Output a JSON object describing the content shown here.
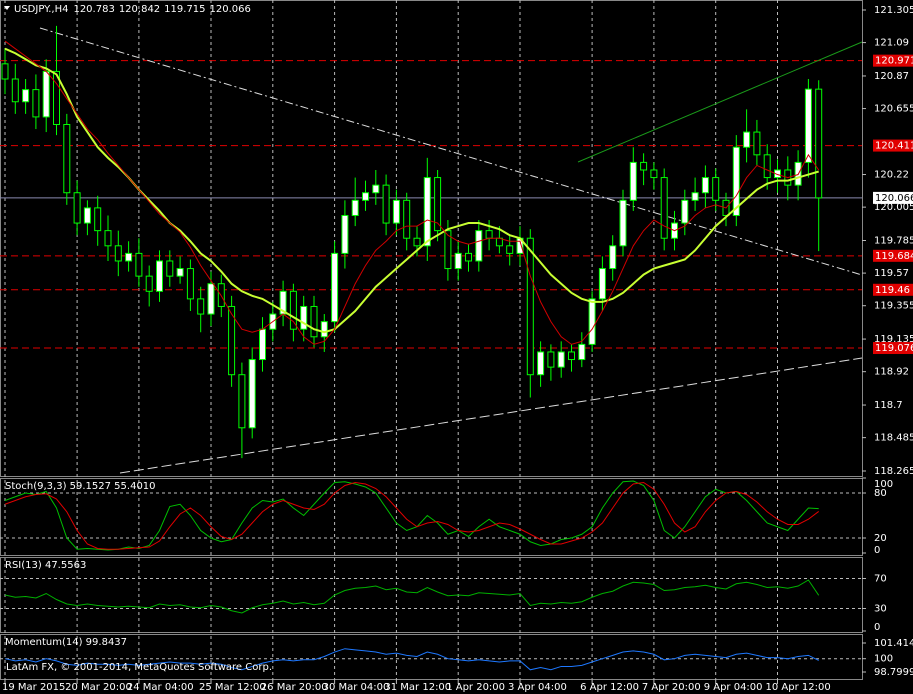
{
  "chart_data": {
    "type": "candlestick",
    "title": "USDJPY.,H4",
    "categories": [
      "19 Mar 2015",
      null,
      null,
      null,
      null,
      null,
      null,
      "20 Mar 20:00",
      null,
      null,
      null,
      null,
      null,
      "24 Mar 04:00",
      null,
      null,
      null,
      null,
      null,
      null,
      "25 Mar 12:00",
      null,
      null,
      null,
      null,
      null,
      "26 Mar 20:00",
      null,
      null,
      null,
      null,
      null,
      "30 Mar 04:00",
      null,
      null,
      null,
      null,
      null,
      "31 Mar 12:00",
      null,
      null,
      null,
      null,
      null,
      "1 Apr 20:00",
      null,
      null,
      null,
      null,
      null,
      "3 Apr 04:00",
      null,
      null,
      null,
      null,
      null,
      null,
      "6 Apr 12:00",
      null,
      null,
      null,
      null,
      null,
      "7 Apr 20:00",
      null,
      null,
      null,
      null,
      null,
      "9 Apr 04:00",
      null,
      null,
      null,
      null,
      null,
      "10 Apr 12:00",
      null,
      null,
      null,
      null
    ],
    "open": [
      120.95,
      120.85,
      120.7,
      120.78,
      120.6,
      120.9,
      120.55,
      120.1,
      119.9,
      120.0,
      119.85,
      119.75,
      119.65,
      119.7,
      119.55,
      119.45,
      119.65,
      119.55,
      119.6,
      119.4,
      119.3,
      119.5,
      119.35,
      118.9,
      118.55,
      119.0,
      119.2,
      119.3,
      119.45,
      119.2,
      119.35,
      119.15,
      119.25,
      119.7,
      119.95,
      120.05,
      120.1,
      120.15,
      119.9,
      120.05,
      119.8,
      119.75,
      120.2,
      119.85,
      119.6,
      119.7,
      119.65,
      119.85,
      119.8,
      119.75,
      119.7,
      119.8,
      118.9,
      119.05,
      118.95,
      119.05,
      119.0,
      119.1,
      119.4,
      119.6,
      119.75,
      120.05,
      120.3,
      120.25,
      120.2,
      119.8,
      119.9,
      120.05,
      120.1,
      120.2,
      120.05,
      119.95,
      120.4,
      120.5,
      120.35,
      120.2,
      120.25,
      120.15,
      120.3,
      120.783
    ],
    "high": [
      121.05,
      120.95,
      120.85,
      120.88,
      120.98,
      121.2,
      120.62,
      120.18,
      120.05,
      120.08,
      119.95,
      119.85,
      119.78,
      119.8,
      119.62,
      119.72,
      119.72,
      119.68,
      119.66,
      119.48,
      119.58,
      119.56,
      119.42,
      118.98,
      119.08,
      119.28,
      119.38,
      119.52,
      119.5,
      119.42,
      119.42,
      119.3,
      119.78,
      120.05,
      120.2,
      120.18,
      120.25,
      120.22,
      120.12,
      120.1,
      119.88,
      120.33,
      120.25,
      119.92,
      119.78,
      119.76,
      119.92,
      119.92,
      119.88,
      119.82,
      119.88,
      119.86,
      119.12,
      119.1,
      119.12,
      119.1,
      119.18,
      119.45,
      119.68,
      119.82,
      120.12,
      120.4,
      120.36,
      120.3,
      120.26,
      119.98,
      120.12,
      120.2,
      120.28,
      120.26,
      120.1,
      120.48,
      120.65,
      120.58,
      120.42,
      120.32,
      120.34,
      120.38,
      120.85,
      120.842
    ],
    "low": [
      120.75,
      120.62,
      120.62,
      120.52,
      120.5,
      120.48,
      120.02,
      119.82,
      119.82,
      119.75,
      119.65,
      119.55,
      119.58,
      119.48,
      119.35,
      119.38,
      119.48,
      119.5,
      119.32,
      119.18,
      119.22,
      119.28,
      118.82,
      118.35,
      118.48,
      118.92,
      119.12,
      119.22,
      119.12,
      119.12,
      119.08,
      119.05,
      119.18,
      119.6,
      119.88,
      119.98,
      120.02,
      119.82,
      119.82,
      119.72,
      119.68,
      119.65,
      119.78,
      119.52,
      119.52,
      119.58,
      119.58,
      119.72,
      119.7,
      119.62,
      119.62,
      118.75,
      118.82,
      118.86,
      118.88,
      118.92,
      118.95,
      119.05,
      119.32,
      119.52,
      119.68,
      119.98,
      120.15,
      120.12,
      119.72,
      119.72,
      119.82,
      119.98,
      120.0,
      119.98,
      119.88,
      119.88,
      120.3,
      120.28,
      120.12,
      120.1,
      120.05,
      120.05,
      120.2,
      119.715
    ],
    "close": [
      120.85,
      120.7,
      120.78,
      120.6,
      120.9,
      120.55,
      120.1,
      119.9,
      120.0,
      119.85,
      119.75,
      119.65,
      119.7,
      119.55,
      119.45,
      119.65,
      119.55,
      119.6,
      119.4,
      119.3,
      119.5,
      119.35,
      118.9,
      118.55,
      119.0,
      119.2,
      119.3,
      119.45,
      119.2,
      119.35,
      119.15,
      119.25,
      119.7,
      119.95,
      120.05,
      120.1,
      120.15,
      119.9,
      120.05,
      119.8,
      119.75,
      120.2,
      119.85,
      119.6,
      119.7,
      119.65,
      119.85,
      119.8,
      119.75,
      119.7,
      119.8,
      118.9,
      119.05,
      118.95,
      119.05,
      119.0,
      119.1,
      119.4,
      119.6,
      119.75,
      120.05,
      120.3,
      120.25,
      120.2,
      119.8,
      119.9,
      120.05,
      120.1,
      120.2,
      120.05,
      119.95,
      120.4,
      120.5,
      120.35,
      120.2,
      120.25,
      120.15,
      120.3,
      120.783,
      120.066
    ],
    "candle_color": "#00ff00",
    "ylim": [
      118.265,
      121.305
    ],
    "yticks": [
      121.305,
      121.09,
      120.87,
      120.655,
      120.22,
      120.005,
      119.785,
      119.57,
      119.355,
      119.135,
      118.92,
      118.7,
      118.485,
      118.265
    ],
    "levels": [
      120.971,
      120.411,
      119.684,
      119.46,
      119.076
    ],
    "level_color": "#e00000",
    "moving_averages": [
      {
        "color": "#c8ff32",
        "values": [
          121.05,
          121.02,
          120.98,
          120.94,
          120.92,
          120.88,
          120.75,
          120.6,
          120.5,
          120.4,
          120.33,
          120.27,
          120.2,
          120.12,
          120.05,
          119.98,
          119.9,
          119.85,
          119.78,
          119.7,
          119.65,
          119.58,
          119.5,
          119.45,
          119.42,
          119.4,
          119.36,
          119.32,
          119.28,
          119.24,
          119.2,
          119.18,
          119.2,
          119.26,
          119.32,
          119.4,
          119.48,
          119.54,
          119.6,
          119.66,
          119.72,
          119.78,
          119.82,
          119.86,
          119.88,
          119.9,
          119.9,
          119.88,
          119.86,
          119.82,
          119.8,
          119.72,
          119.64,
          119.56,
          119.5,
          119.44,
          119.4,
          119.38,
          119.38,
          119.4,
          119.44,
          119.5,
          119.56,
          119.6,
          119.62,
          119.64,
          119.66,
          119.72,
          119.8,
          119.88,
          119.94,
          120.0,
          120.06,
          120.12,
          120.16,
          120.18,
          120.18,
          120.2,
          120.22,
          120.24
        ]
      },
      {
        "color": "#d00000",
        "values": [
          121.1,
          121.05,
          121.0,
          120.95,
          120.9,
          120.82,
          120.72,
          120.62,
          120.52,
          120.45,
          120.36,
          120.28,
          120.2,
          120.12,
          120.04,
          119.96,
          119.9,
          119.84,
          119.74,
          119.62,
          119.52,
          119.42,
          119.3,
          119.2,
          119.18,
          119.2,
          119.25,
          119.3,
          119.25,
          119.15,
          119.1,
          119.12,
          119.2,
          119.35,
          119.5,
          119.62,
          119.72,
          119.78,
          119.85,
          119.88,
          119.88,
          119.92,
          119.9,
          119.82,
          119.78,
          119.76,
          119.78,
          119.8,
          119.8,
          119.78,
          119.78,
          119.55,
          119.38,
          119.25,
          119.15,
          119.1,
          119.12,
          119.2,
          119.32,
          119.45,
          119.6,
          119.75,
          119.85,
          119.92,
          119.88,
          119.85,
          119.88,
          119.95,
          120.0,
          120.02,
          120.0,
          120.08,
          120.2,
          120.28,
          120.25,
          120.22,
          120.2,
          120.22,
          120.35,
          120.25
        ]
      }
    ],
    "indicators": [
      {
        "label": "Stoch(9,3,3) 59.1527 55.4010",
        "ylim": [
          0,
          100
        ],
        "yticks": [
          100,
          80,
          20,
          0
        ],
        "levels": [
          80,
          20
        ],
        "series": [
          {
            "color": "#00c000",
            "values": [
              70,
              75,
              80,
              78,
              82,
              60,
              20,
              5,
              6,
              5,
              4,
              5,
              8,
              6,
              10,
              30,
              62,
              65,
              50,
              30,
              20,
              15,
              18,
              40,
              60,
              70,
              68,
              72,
              60,
              50,
              65,
              80,
              94,
              95,
              92,
              88,
              80,
              60,
              40,
              30,
              35,
              50,
              40,
              25,
              30,
              22,
              35,
              45,
              35,
              30,
              25,
              15,
              10,
              12,
              18,
              20,
              25,
              35,
              60,
              80,
              95,
              96,
              90,
              70,
              30,
              20,
              35,
              55,
              75,
              85,
              80,
              82,
              70,
              55,
              40,
              35,
              30,
              45,
              60,
              59.1527
            ]
          },
          {
            "color": "#e00000",
            "values": [
              65,
              70,
              75,
              78,
              79,
              72,
              55,
              30,
              12,
              6,
              5,
              5,
              6,
              7,
              8,
              16,
              35,
              52,
              60,
              50,
              35,
              22,
              18,
              25,
              40,
              55,
              65,
              70,
              65,
              60,
              58,
              65,
              80,
              90,
              94,
              92,
              86,
              75,
              60,
              45,
              35,
              40,
              42,
              38,
              30,
              28,
              30,
              35,
              40,
              38,
              32,
              25,
              18,
              12,
              12,
              16,
              20,
              28,
              40,
              60,
              80,
              92,
              94,
              85,
              65,
              40,
              28,
              35,
              55,
              70,
              80,
              82,
              78,
              68,
              55,
              45,
              38,
              38,
              45,
              55.401
            ]
          }
        ]
      },
      {
        "label": "RSI(13) 47.5563",
        "ylim": [
          0,
          100
        ],
        "yticks": [
          70,
          30,
          0
        ],
        "levels": [
          70,
          30
        ],
        "series": [
          {
            "color": "#00b000",
            "values": [
              48,
              45,
              46,
              44,
              50,
              42,
              36,
              34,
              36,
              34,
              33,
              32,
              33,
              32,
              31,
              36,
              34,
              35,
              32,
              31,
              34,
              32,
              27,
              24,
              31,
              35,
              37,
              40,
              36,
              38,
              35,
              37,
              48,
              54,
              57,
              58,
              60,
              55,
              57,
              52,
              51,
              58,
              52,
              47,
              48,
              47,
              51,
              50,
              49,
              48,
              50,
              34,
              37,
              36,
              38,
              37,
              39,
              45,
              50,
              53,
              60,
              65,
              64,
              62,
              54,
              55,
              58,
              59,
              61,
              58,
              56,
              63,
              65,
              62,
              58,
              59,
              57,
              60,
              68,
              47.5563
            ]
          }
        ]
      },
      {
        "label": "Momentum(14) 99.8437",
        "ylim": [
          98.7999,
          101.4148
        ],
        "yticks": [
          101.4148,
          100,
          98.7999
        ],
        "levels": [
          100
        ],
        "series": [
          {
            "color": "#1e78ff",
            "values": [
              100.0,
              99.8,
              99.9,
              99.7,
              100.0,
              99.8,
              99.5,
              99.4,
              99.6,
              99.5,
              99.5,
              99.4,
              99.5,
              99.4,
              99.5,
              99.6,
              99.7,
              99.6,
              99.6,
              99.5,
              99.6,
              99.5,
              99.2,
              99.0,
              99.3,
              99.6,
              99.8,
              99.9,
              99.8,
              99.9,
              99.9,
              100.2,
              100.6,
              100.9,
              100.8,
              100.7,
              100.6,
              100.4,
              100.5,
              100.3,
              100.2,
              100.6,
              100.4,
              100.0,
              99.9,
              99.8,
              99.9,
              99.8,
              99.7,
              99.8,
              99.8,
              99.0,
              99.2,
              99.0,
              99.3,
              99.3,
              99.4,
              99.7,
              100.0,
              100.3,
              100.6,
              100.7,
              100.6,
              100.4,
              99.9,
              100.0,
              100.3,
              100.4,
              100.3,
              100.2,
              100.1,
              100.4,
              100.5,
              100.3,
              100.1,
              100.1,
              100.0,
              100.2,
              100.3,
              99.8437
            ]
          }
        ]
      }
    ],
    "copyright": "LatAm FX, © 2001-2014, MetaQuotes Software Corp."
  }
}
